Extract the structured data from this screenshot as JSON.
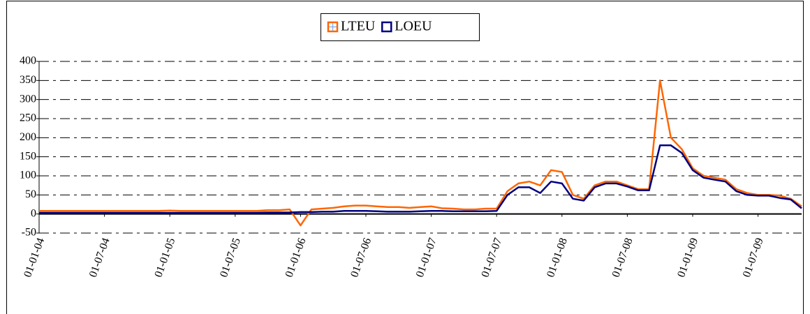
{
  "chart_data": {
    "type": "line",
    "categories": [
      "01-01-04",
      null,
      null,
      null,
      null,
      null,
      "01-07-04",
      null,
      null,
      null,
      null,
      null,
      "01-01-05",
      null,
      null,
      null,
      null,
      null,
      "01-07-05",
      null,
      null,
      null,
      null,
      null,
      "01-01-06",
      null,
      null,
      null,
      null,
      null,
      "01-07-06",
      null,
      null,
      null,
      null,
      null,
      "01-01-07",
      null,
      null,
      null,
      null,
      null,
      "01-07-07",
      null,
      null,
      null,
      null,
      null,
      "01-01-08",
      null,
      null,
      null,
      null,
      null,
      "01-07-08",
      null,
      null,
      null,
      null,
      null,
      "01-01-09",
      null,
      null,
      null,
      null,
      null,
      "01-07-09",
      null,
      null,
      null,
      null
    ],
    "series": [
      {
        "name": "LTEU",
        "color": "#ff6600",
        "values": [
          8,
          8,
          8,
          8,
          8,
          8,
          8,
          8,
          8,
          8,
          8,
          8,
          9,
          8,
          8,
          8,
          8,
          8,
          8,
          8,
          8,
          10,
          10,
          12,
          -30,
          12,
          14,
          16,
          20,
          22,
          22,
          20,
          18,
          18,
          16,
          18,
          20,
          15,
          14,
          12,
          12,
          14,
          14,
          60,
          80,
          85,
          75,
          115,
          110,
          50,
          40,
          75,
          85,
          85,
          75,
          65,
          65,
          350,
          200,
          170,
          120,
          100,
          95,
          90,
          65,
          55,
          50,
          50,
          48,
          40,
          20
        ]
      },
      {
        "name": "LOEU",
        "color": "#000080",
        "values": [
          3,
          3,
          3,
          3,
          3,
          3,
          3,
          3,
          3,
          3,
          3,
          3,
          3,
          3,
          3,
          3,
          3,
          3,
          3,
          3,
          3,
          4,
          4,
          4,
          5,
          5,
          6,
          6,
          8,
          8,
          8,
          7,
          6,
          6,
          6,
          7,
          8,
          8,
          7,
          7,
          7,
          7,
          8,
          50,
          70,
          70,
          55,
          85,
          80,
          40,
          35,
          70,
          80,
          80,
          72,
          62,
          62,
          180,
          180,
          160,
          115,
          95,
          90,
          85,
          60,
          50,
          48,
          48,
          42,
          38,
          15
        ]
      }
    ],
    "ylim": [
      -50,
      400
    ],
    "yticks": [
      -50,
      0,
      50,
      100,
      150,
      200,
      250,
      300,
      350,
      400
    ],
    "grid": true,
    "legend": "top"
  }
}
